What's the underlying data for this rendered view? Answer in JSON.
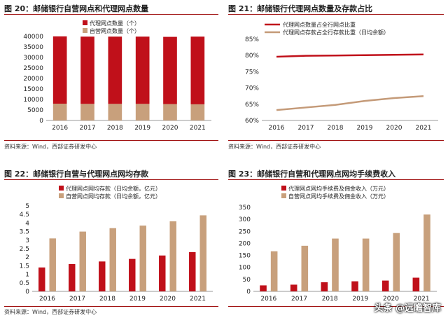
{
  "panels": [
    {
      "title": "图 20：邮储银行自营网点和代理网点数量",
      "source": "资料来源：Wind，西部证券研发中心"
    },
    {
      "title": "图 21：邮储银行代理网点数量及存款占比",
      "source": "资料来源：Wind，西部证券研发中心"
    },
    {
      "title": "图 22：邮储银行自营与代理网点网均存款",
      "source": "资料来源：Wind，西部证券研发中心"
    },
    {
      "title": "图 23：邮储银行自营和代理网点网均手续费收入",
      "source": "资料来源：Wind，西部证券研发中心"
    }
  ],
  "watermark": "头条 @远瞻智库",
  "colors": {
    "red": "#c0101a",
    "tan": "#c8a07c",
    "line_red": "#c0101a",
    "line_tan": "#c49a78",
    "rule": "#a01010"
  },
  "chart_data": [
    {
      "type": "bar",
      "stacked": true,
      "categories": [
        "2016",
        "2017",
        "2018",
        "2019",
        "2020",
        "2021"
      ],
      "series": [
        {
          "name": "代理网点数量（个）",
          "values": [
            32000,
            32000,
            32000,
            32000,
            32000,
            32200
          ]
        },
        {
          "name": "自营网点数量（个）",
          "values": [
            8000,
            7900,
            7900,
            7900,
            7800,
            7700
          ]
        }
      ],
      "ylim": [
        0,
        40000
      ],
      "yticks": [
        "0",
        "5000",
        "10000",
        "15000",
        "20000",
        "25000",
        "30000",
        "35000",
        "40000"
      ],
      "legend": "top-left"
    },
    {
      "type": "line",
      "categories": [
        "2016",
        "2017",
        "2018",
        "2019",
        "2020",
        "2021"
      ],
      "series": [
        {
          "name": "代理网点数量占全行网点比重",
          "values": [
            79.6,
            79.9,
            80.0,
            80.1,
            80.2,
            80.3
          ]
        },
        {
          "name": "代理网点存款占全行存款比重（日均余额）",
          "values": [
            63.2,
            64.0,
            64.8,
            66.0,
            66.9,
            67.5
          ]
        }
      ],
      "ylim": [
        60,
        85
      ],
      "yticks": [
        "60%",
        "65%",
        "70%",
        "75%",
        "80%",
        "85%"
      ],
      "legend": "top-left"
    },
    {
      "type": "bar",
      "categories": [
        "2016",
        "2017",
        "2018",
        "2019",
        "2020",
        "2021"
      ],
      "series": [
        {
          "name": "代理网点网均存款（日均余额，亿元）",
          "values": [
            1.4,
            1.6,
            1.75,
            1.9,
            2.1,
            2.3
          ]
        },
        {
          "name": "自营网点网均存款（日均余额，亿元）",
          "values": [
            3.1,
            3.5,
            3.7,
            3.85,
            4.1,
            4.45
          ]
        }
      ],
      "ylim": [
        0,
        5
      ],
      "yticks": [
        "0",
        "0.5",
        "1",
        "1.5",
        "2",
        "2.5",
        "3",
        "3.5",
        "4",
        "4.5",
        "5"
      ],
      "legend": "top-left"
    },
    {
      "type": "bar",
      "categories": [
        "2016",
        "2017",
        "2018",
        "2019",
        "2020",
        "2021"
      ],
      "series": [
        {
          "name": "代理网点网均手续费及佣金收入（万元）",
          "values": [
            25,
            28,
            38,
            42,
            45,
            57
          ]
        },
        {
          "name": "自营网点网均手续费及佣金收入（万元）",
          "values": [
            167,
            190,
            220,
            220,
            243,
            320
          ]
        }
      ],
      "ylim": [
        0,
        350
      ],
      "yticks": [
        "0",
        "50",
        "100",
        "150",
        "200",
        "250",
        "300",
        "350"
      ],
      "legend": "top-left"
    }
  ]
}
